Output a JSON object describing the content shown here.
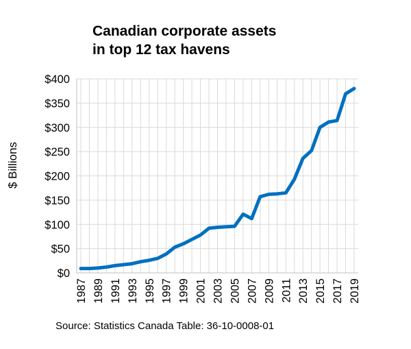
{
  "chart_data": {
    "type": "line",
    "title_lines": [
      "Canadian corporate assets",
      "in top 12 tax havens"
    ],
    "xlabel": "",
    "ylabel": "$ Billions",
    "ylim": [
      0,
      400
    ],
    "yticks": [
      0,
      50,
      100,
      150,
      200,
      250,
      300,
      350,
      400
    ],
    "ytick_labels": [
      "$0",
      "$50",
      "$100",
      "$150",
      "$200",
      "$250",
      "$300",
      "$350",
      "$400"
    ],
    "xtick_labels": [
      "1987",
      "1989",
      "1991",
      "1993",
      "1995",
      "1997",
      "1999",
      "2001",
      "2003",
      "2005",
      "2007",
      "2009",
      "2011",
      "2013",
      "2015",
      "2017",
      "2019"
    ],
    "grid": true,
    "legend": "none",
    "series": [
      {
        "color": "#0070c0",
        "x": [
          1987,
          1988,
          1989,
          1990,
          1991,
          1992,
          1993,
          1994,
          1995,
          1996,
          1997,
          1998,
          1999,
          2000,
          2001,
          2002,
          2003,
          2004,
          2005,
          2006,
          2007,
          2008,
          2009,
          2010,
          2011,
          2012,
          2013,
          2014,
          2015,
          2016,
          2017,
          2018,
          2019
        ],
        "values": [
          9,
          9,
          10,
          12,
          15,
          17,
          19,
          23,
          26,
          30,
          39,
          53,
          60,
          69,
          78,
          92,
          94,
          95,
          96,
          121,
          112,
          157,
          162,
          163,
          165,
          193,
          236,
          252,
          300,
          311,
          314,
          369,
          380
        ]
      }
    ]
  },
  "source": "Source: Statistics Canada Table: 36-10-0008-01"
}
